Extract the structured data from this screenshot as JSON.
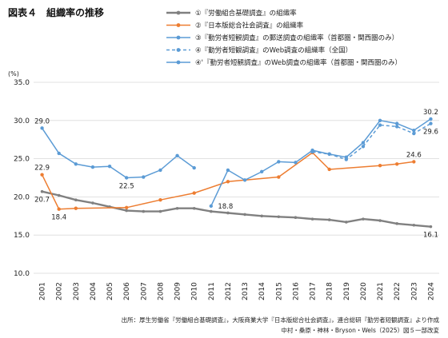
{
  "chart_data": {
    "type": "line",
    "title": "図表４　組織率の推移",
    "unit_label": "(%)",
    "ylim": [
      10.0,
      35.0
    ],
    "yticks": [
      10.0,
      15.0,
      20.0,
      25.0,
      30.0,
      35.0
    ],
    "ytick_labels": [
      "10.0",
      "15.0",
      "20.0",
      "25.0",
      "30.0",
      "35.0"
    ],
    "grid": true,
    "x": [
      "2001",
      "2002",
      "2003",
      "2004",
      "2005",
      "2006",
      "2007",
      "2008",
      "2009",
      "2010",
      "2011",
      "2012",
      "2013",
      "2014",
      "2015",
      "2016",
      "2017",
      "2018",
      "2019",
      "2020",
      "2021",
      "2022",
      "2023",
      "2024"
    ],
    "series": [
      {
        "name": "①『労働組合基礎調査』の組織率",
        "color": "#808080",
        "dash": false,
        "values": [
          20.7,
          20.2,
          19.6,
          19.2,
          18.7,
          18.2,
          18.1,
          18.1,
          18.5,
          18.5,
          18.1,
          17.9,
          17.7,
          17.5,
          17.4,
          17.3,
          17.1,
          17.0,
          16.7,
          17.1,
          16.9,
          16.5,
          16.3,
          16.1
        ]
      },
      {
        "name": "②『日本版総合社会調査』の組織率",
        "color": "#ed7d31",
        "dash": false,
        "values": [
          22.9,
          18.4,
          18.5,
          null,
          null,
          18.6,
          null,
          19.6,
          null,
          20.5,
          null,
          22.0,
          null,
          null,
          22.6,
          null,
          25.8,
          23.6,
          null,
          null,
          24.1,
          24.3,
          24.6,
          null
        ]
      },
      {
        "name": "③『勤労者短観調査』の郵送調査の組織率（首都圏・関西圏のみ）",
        "color": "#5b9bd5",
        "dash": false,
        "values": [
          29.0,
          25.7,
          24.3,
          23.9,
          24.0,
          22.5,
          22.6,
          23.5,
          25.4,
          23.8,
          null,
          null,
          null,
          null,
          null,
          null,
          null,
          null,
          null,
          null,
          null,
          null,
          null,
          null
        ]
      },
      {
        "name": "④『勤労者短観調査』のWeb調査の組織率（全国）",
        "color": "#5b9bd5",
        "dash": true,
        "values": [
          null,
          null,
          null,
          null,
          null,
          null,
          null,
          null,
          null,
          null,
          null,
          null,
          null,
          null,
          null,
          null,
          25.9,
          25.6,
          24.9,
          26.6,
          29.4,
          29.2,
          28.3,
          29.6
        ]
      },
      {
        "name": "④'『勤労者短観調査』のWeb調査の組織率（首都圏・関西圏のみ）",
        "color": "#5b9bd5",
        "dash": false,
        "values": [
          null,
          null,
          null,
          null,
          null,
          null,
          null,
          null,
          null,
          null,
          18.8,
          23.5,
          22.2,
          23.3,
          24.6,
          24.5,
          26.1,
          25.6,
          25.2,
          27.1,
          30.0,
          29.6,
          28.7,
          30.2
        ]
      }
    ],
    "annotations": [
      {
        "text": "29.0",
        "year": "2001",
        "value": 29.0,
        "pos": "above"
      },
      {
        "text": "22.9",
        "year": "2001",
        "value": 22.9,
        "pos": "above"
      },
      {
        "text": "20.7",
        "year": "2001",
        "value": 20.7,
        "pos": "below"
      },
      {
        "text": "18.4",
        "year": "2002",
        "value": 18.4,
        "pos": "below"
      },
      {
        "text": "22.5",
        "year": "2006",
        "value": 22.5,
        "pos": "below"
      },
      {
        "text": "18.8",
        "year": "2011",
        "value": 18.8,
        "pos": "right"
      },
      {
        "text": "24.6",
        "year": "2023",
        "value": 24.6,
        "pos": "above"
      },
      {
        "text": "30.2",
        "year": "2024",
        "value": 30.2,
        "pos": "above"
      },
      {
        "text": "29.6",
        "year": "2024",
        "value": 29.6,
        "pos": "below"
      },
      {
        "text": "16.1",
        "year": "2024",
        "value": 16.1,
        "pos": "below"
      }
    ],
    "legend_position": "top-right",
    "source_lines": [
      "出所：厚生労働省『労働組合基礎調査』，大阪商業大学『日本版総合社会調査』，連合総研『勤労者短観調査』より作成",
      "中村・桑原・神林・Bryson・Wels（2025）図５一部改変"
    ]
  }
}
